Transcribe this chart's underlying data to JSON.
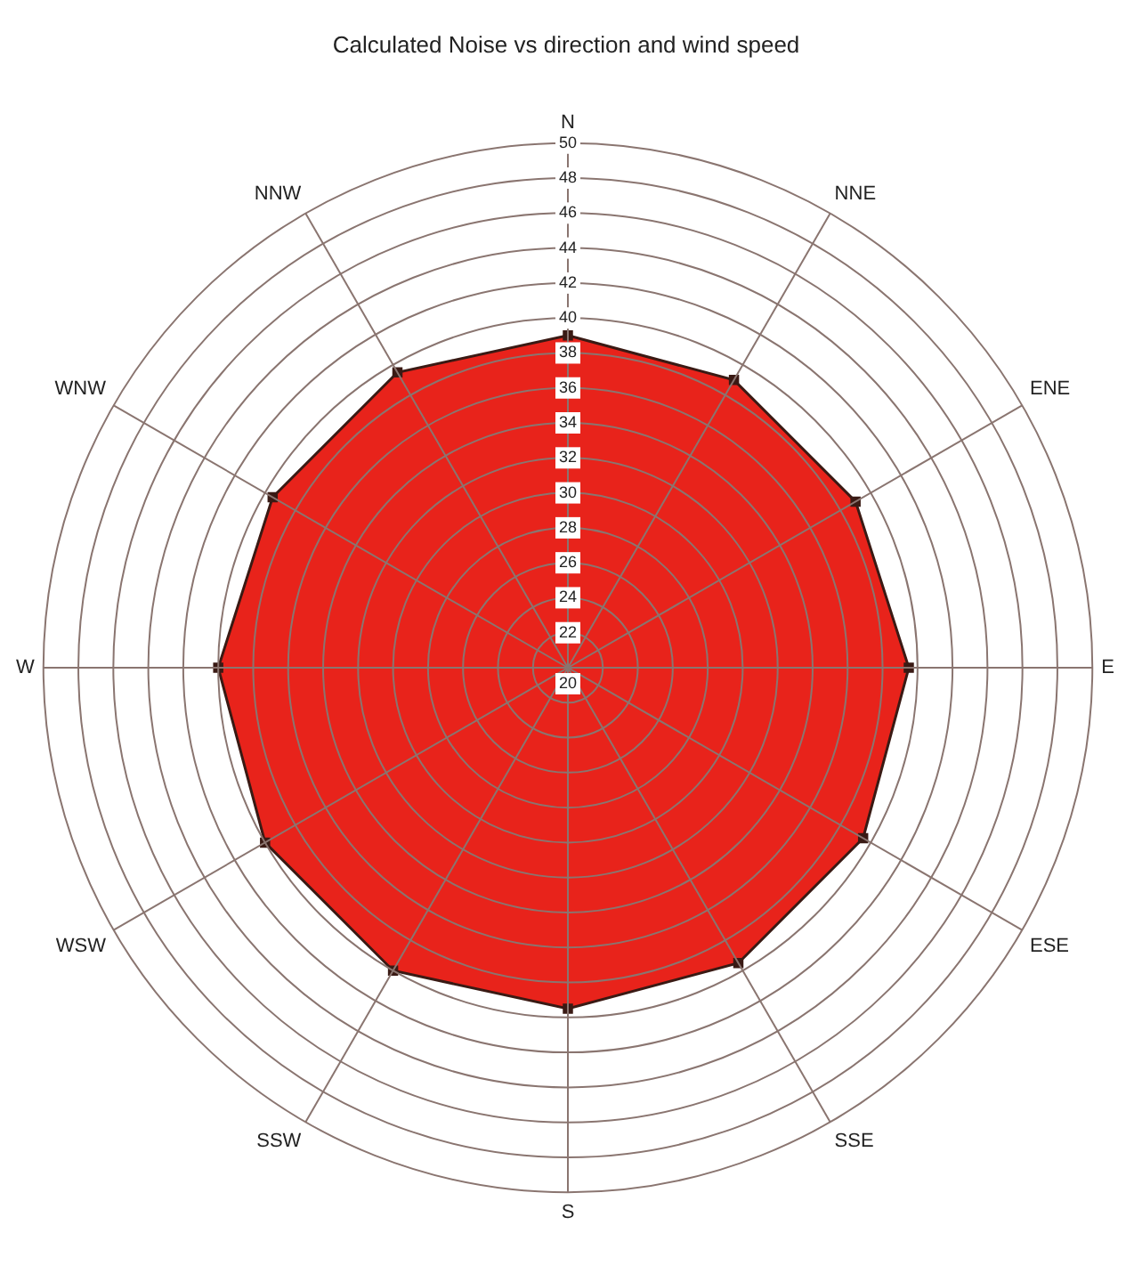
{
  "chart_data": {
    "type": "radar",
    "title": "Calculated Noise vs direction and wind speed",
    "categories": [
      "N",
      "NNE",
      "ENE",
      "E",
      "ESE",
      "SSE",
      "S",
      "SSW",
      "WSW",
      "W",
      "WNW",
      "NNW"
    ],
    "series": [
      {
        "color": "#e8231b",
        "values": [
          39,
          39,
          39,
          39.5,
          39.5,
          39.5,
          39.5,
          40,
          40,
          40,
          39.5,
          39.5
        ]
      }
    ],
    "ylim": [
      20,
      50
    ],
    "yticks": [
      20,
      22,
      24,
      26,
      28,
      30,
      32,
      34,
      36,
      38,
      40,
      42,
      44,
      46,
      48,
      50
    ],
    "grid": true,
    "legend": false,
    "marker": "square"
  }
}
